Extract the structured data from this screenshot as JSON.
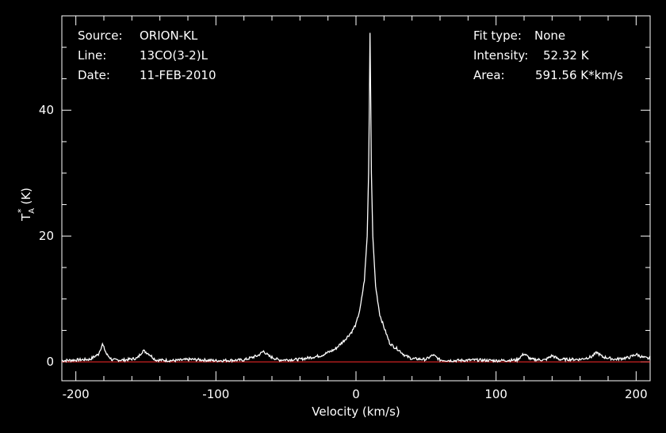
{
  "header": {
    "left": [
      {
        "label": "Source:",
        "value": "ORION-KL"
      },
      {
        "label": "Line:",
        "value": "13CO(3-2)L"
      },
      {
        "label": "Date:",
        "value": "11-FEB-2010"
      }
    ],
    "right": [
      {
        "label": "Fit type:",
        "value": "None"
      },
      {
        "label": "Intensity:",
        "value": "52.32 K"
      },
      {
        "label": "Area:",
        "value": "591.56 K*km/s"
      }
    ]
  },
  "colors": {
    "background": "#000000",
    "axes": "#ffffff",
    "spectrum": "#ffffff",
    "baseline": "#ff2a2a"
  },
  "chart_data": {
    "type": "line",
    "title": "",
    "xlabel": "Velocity (km/s)",
    "ylabel_main": "T",
    "ylabel_super": "*",
    "ylabel_sub": "A",
    "ylabel_unit": "(K)",
    "xlim": [
      -210,
      210
    ],
    "ylim": [
      -3,
      55
    ],
    "xticks_major": [
      -200,
      -100,
      0,
      100,
      200
    ],
    "xtick_labels": [
      "-200",
      "-100",
      "0",
      "100",
      "200"
    ],
    "yticks_major": [
      0,
      20,
      40
    ],
    "ytick_labels": [
      "0",
      "20",
      "40"
    ],
    "baseline_y": 0,
    "series": [
      {
        "values_x": [
          -210,
          -200,
          -190,
          -184,
          -181,
          -178,
          -174,
          -165,
          -156,
          -152,
          -148,
          -143,
          -130,
          -118,
          -100,
          -80,
          -70,
          -66,
          -62,
          -55,
          -40,
          -25,
          -15,
          -8,
          -3,
          0,
          3,
          6,
          8,
          9,
          9.5,
          10,
          10.5,
          11,
          12,
          14,
          17,
          20,
          24,
          27,
          30,
          35,
          40,
          50,
          55,
          60,
          70,
          85,
          100,
          115,
          120,
          125,
          135,
          140,
          145,
          160,
          168,
          172,
          176,
          185,
          195,
          200,
          205,
          210
        ],
        "values_y": [
          0.2,
          0.3,
          0.4,
          1.2,
          2.8,
          1.2,
          0.3,
          0.3,
          0.6,
          1.8,
          1.3,
          0.3,
          0.2,
          0.4,
          0.2,
          0.3,
          1.0,
          1.7,
          0.9,
          0.3,
          0.4,
          1.0,
          2.0,
          3.5,
          4.8,
          6.0,
          8.5,
          13.0,
          20.0,
          30.0,
          40.0,
          52.3,
          42.0,
          30.0,
          20.0,
          12.0,
          7.5,
          5.5,
          3.0,
          2.4,
          2.0,
          1.0,
          0.5,
          0.4,
          1.1,
          0.3,
          0.2,
          0.3,
          0.2,
          0.3,
          1.3,
          0.4,
          0.3,
          1.0,
          0.4,
          0.4,
          0.8,
          1.5,
          0.8,
          0.4,
          0.7,
          1.2,
          0.7,
          0.5
        ]
      }
    ]
  }
}
